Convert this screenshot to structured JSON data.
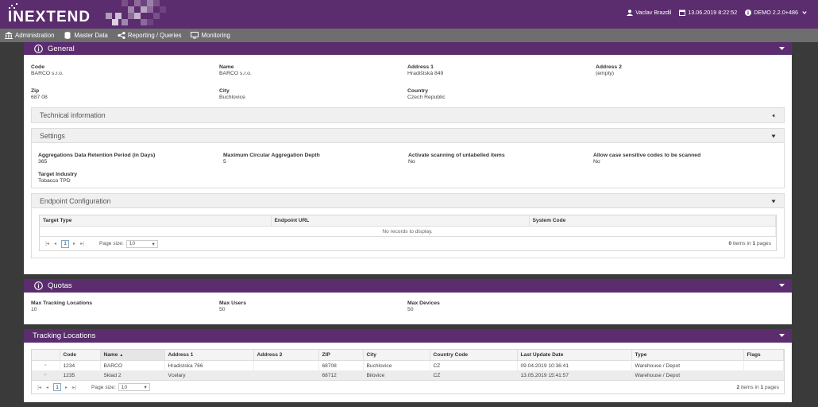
{
  "header": {
    "logo": "INEXTEND",
    "user": "Vaclav Brazdil",
    "datetime": "13.06.2019 8:22:52",
    "version": "DEMO 2.2.0+486"
  },
  "menu": [
    {
      "label": "Administration",
      "icon": "building-icon"
    },
    {
      "label": "Master Data",
      "icon": "database-icon"
    },
    {
      "label": "Reporting / Queries",
      "icon": "share-icon"
    },
    {
      "label": "Monitoring",
      "icon": "monitor-icon"
    }
  ],
  "general": {
    "title": "General",
    "fields": [
      {
        "label": "Code",
        "value": "BARCO s.r.o."
      },
      {
        "label": "Name",
        "value": "BARCO s.r.o."
      },
      {
        "label": "Address 1",
        "value": "Hradištská 849"
      },
      {
        "label": "Address 2",
        "value": "(empty)"
      },
      {
        "label": "Zip",
        "value": "687 08"
      },
      {
        "label": "City",
        "value": "Buchlovice"
      },
      {
        "label": "Country",
        "value": "Czech Republic"
      }
    ],
    "technical": {
      "title": "Technical information"
    },
    "settings": {
      "title": "Settings",
      "fields": [
        {
          "label": "Aggregations Data Retention Period (in Days)",
          "value": "365"
        },
        {
          "label": "Maximum Circular Aggregation Depth",
          "value": "5"
        },
        {
          "label": "Activate scanning of unlabelled items",
          "value": "No"
        },
        {
          "label": "Allow case sensitive codes to be scanned",
          "value": "No"
        },
        {
          "label": "Target Industry",
          "value": "Tobacco TPD"
        }
      ]
    },
    "endpoint": {
      "title": "Endpoint Configuration",
      "columns": [
        "Target Type",
        "Endpoint URL",
        "System Code"
      ],
      "empty": "No records to display.",
      "page": "1",
      "page_size_label": "Page size:",
      "page_size": "10",
      "count": "0",
      "items_in": "items in",
      "pages_count": "1",
      "pages_label": "pages"
    }
  },
  "quotas": {
    "title": "Quotas",
    "fields": [
      {
        "label": "Max Tracking Locations",
        "value": "10"
      },
      {
        "label": "Max Users",
        "value": "50"
      },
      {
        "label": "Max Devices",
        "value": "50"
      }
    ]
  },
  "tracking": {
    "title": "Tracking Locations",
    "columns": [
      "Code",
      "Name",
      "Address 1",
      "Address 2",
      "ZIP",
      "City",
      "Country Code",
      "Last Update Date",
      "Type",
      "Flags"
    ],
    "rows": [
      [
        "1234",
        "BARCO",
        "Hradistska 766",
        "",
        "68708",
        "Buchlovice",
        "CZ",
        "09.04.2019 10:36:41",
        "Warehouse / Depot",
        ""
      ],
      [
        "1235",
        "Sklad 2",
        "Vcelary",
        "",
        "68712",
        "Bilovice",
        "CZ",
        "13.05.2019 15:41:57",
        "Warehouse / Depot",
        ""
      ]
    ],
    "page": "1",
    "page_size_label": "Page size:",
    "page_size": "10",
    "count": "2",
    "items_in": "items in",
    "pages_count": "1",
    "pages_label": "pages"
  },
  "colors": {
    "brand": "#5b2d6e",
    "menu": "#6e6e6e"
  }
}
